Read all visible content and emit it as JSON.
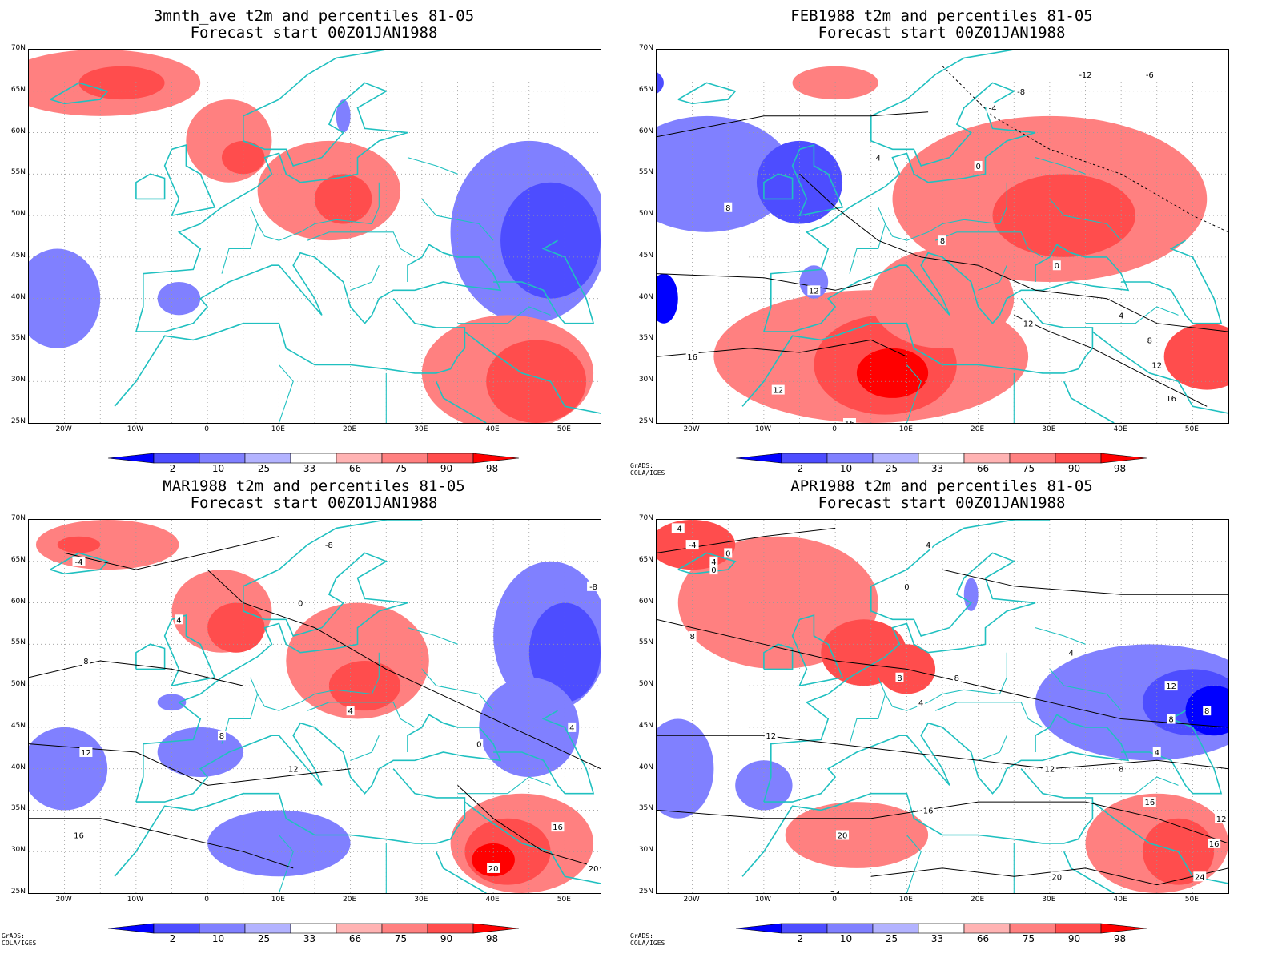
{
  "panels": [
    {
      "title1": "3mnth_ave t2m and percentiles 81-05",
      "title2": "Forecast start 00Z01JAN1988",
      "credit": ""
    },
    {
      "title1": "FEB1988 t2m and percentiles 81-05",
      "title2": "Forecast start 00Z01JAN1988",
      "credit": "GrADS: COLA/IGES"
    },
    {
      "title1": "MAR1988 t2m and percentiles 81-05",
      "title2": "Forecast start 00Z01JAN1988",
      "credit": "GrADS: COLA/IGES"
    },
    {
      "title1": "APR1988 t2m and percentiles 81-05",
      "title2": "Forecast start 00Z01JAN1988",
      "credit": "GrADS: COLA/IGES"
    }
  ],
  "lat_labels": [
    "70N",
    "65N",
    "60N",
    "55N",
    "50N",
    "45N",
    "40N",
    "35N",
    "30N",
    "25N"
  ],
  "lon_labels": [
    "20W",
    "10W",
    "0",
    "10E",
    "20E",
    "30E",
    "40E",
    "50E"
  ],
  "colorbar": {
    "ticks": [
      "2",
      "10",
      "25",
      "33",
      "66",
      "75",
      "90",
      "98"
    ],
    "colors": [
      "#0000ff",
      "#4d4dff",
      "#8080ff",
      "#b3b3ff",
      "#ffffff",
      "#ffb3b3",
      "#ff8080",
      "#ff4d4d",
      "#ff0000"
    ]
  },
  "colors": {
    "coast": "#20c0c0",
    "grid": "#9a9a9a"
  }
}
